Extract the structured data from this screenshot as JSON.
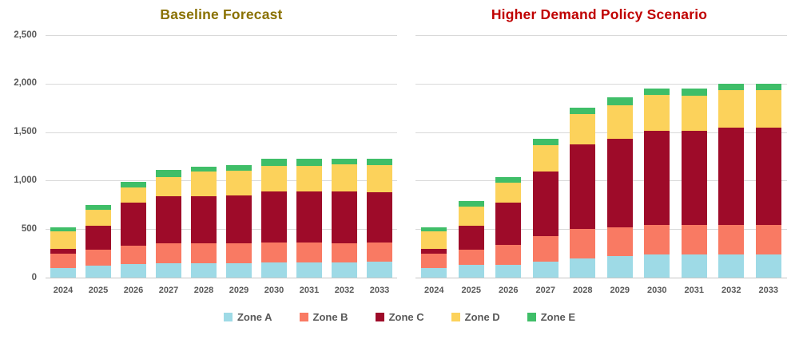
{
  "titles": {
    "left": "Baseline Forecast",
    "right": "Higher Demand Policy Scenario"
  },
  "colors": {
    "left_title": "#8A7100",
    "right_title": "#C00000",
    "axis_text": "#595959",
    "gridline": "#D9D9D9",
    "axis_line": "#C6C6C6",
    "zone_a": "#9EDAE6",
    "zone_b": "#F97A63",
    "zone_c": "#9E0B29",
    "zone_d": "#FCD25B",
    "zone_e": "#3FBE68"
  },
  "y_axis": {
    "min": 0,
    "max": 2500,
    "step": 500,
    "ticks": [
      "0",
      "500",
      "1,000",
      "1,500",
      "2,000",
      "2,500"
    ]
  },
  "categories": [
    "2024",
    "2025",
    "2026",
    "2027",
    "2028",
    "2029",
    "2030",
    "2031",
    "2032",
    "2033"
  ],
  "legend": [
    {
      "label": "Zone A",
      "color": "#9EDAE6"
    },
    {
      "label": "Zone B",
      "color": "#F97A63"
    },
    {
      "label": "Zone C",
      "color": "#9E0B29"
    },
    {
      "label": "Zone D",
      "color": "#FCD25B"
    },
    {
      "label": "Zone E",
      "color": "#3FBE68"
    }
  ],
  "chart_data": [
    {
      "type": "bar",
      "stacked": true,
      "title": "Baseline Forecast",
      "xlabel": "",
      "ylabel": "",
      "ylim": [
        0,
        2500
      ],
      "grid": true,
      "legend_position": "bottom",
      "categories": [
        "2024",
        "2025",
        "2026",
        "2027",
        "2028",
        "2029",
        "2030",
        "2031",
        "2032",
        "2033"
      ],
      "series": [
        {
          "name": "Zone A",
          "color": "#9EDAE6",
          "values": [
            100,
            120,
            140,
            150,
            150,
            150,
            160,
            160,
            160,
            165
          ]
        },
        {
          "name": "Zone B",
          "color": "#F97A63",
          "values": [
            150,
            170,
            190,
            205,
            205,
            205,
            200,
            200,
            195,
            195
          ]
        },
        {
          "name": "Zone C",
          "color": "#9E0B29",
          "values": [
            50,
            245,
            440,
            485,
            485,
            495,
            530,
            530,
            535,
            520
          ]
        },
        {
          "name": "Zone D",
          "color": "#FCD25B",
          "values": [
            175,
            165,
            160,
            200,
            250,
            250,
            265,
            265,
            280,
            280
          ]
        },
        {
          "name": "Zone E",
          "color": "#3FBE68",
          "values": [
            45,
            50,
            60,
            70,
            50,
            60,
            70,
            70,
            55,
            65
          ]
        }
      ],
      "totals": [
        520,
        750,
        990,
        1110,
        1140,
        1160,
        1225,
        1225,
        1225,
        1225
      ]
    },
    {
      "type": "bar",
      "stacked": true,
      "title": "Higher Demand Policy Scenario",
      "xlabel": "",
      "ylabel": "",
      "ylim": [
        0,
        2500
      ],
      "grid": true,
      "legend_position": "bottom",
      "categories": [
        "2024",
        "2025",
        "2026",
        "2027",
        "2028",
        "2029",
        "2030",
        "2031",
        "2032",
        "2033"
      ],
      "series": [
        {
          "name": "Zone A",
          "color": "#9EDAE6",
          "values": [
            100,
            130,
            135,
            165,
            200,
            225,
            240,
            240,
            235,
            240
          ]
        },
        {
          "name": "Zone B",
          "color": "#F97A63",
          "values": [
            150,
            160,
            200,
            260,
            300,
            295,
            300,
            300,
            305,
            305
          ]
        },
        {
          "name": "Zone C",
          "color": "#9E0B29",
          "values": [
            50,
            245,
            435,
            670,
            870,
            915,
            970,
            970,
            1010,
            1000
          ]
        },
        {
          "name": "Zone D",
          "color": "#FCD25B",
          "values": [
            175,
            195,
            205,
            270,
            320,
            345,
            375,
            365,
            380,
            385
          ]
        },
        {
          "name": "Zone E",
          "color": "#3FBE68",
          "values": [
            45,
            60,
            65,
            65,
            60,
            75,
            65,
            75,
            70,
            70
          ]
        }
      ],
      "totals": [
        520,
        790,
        1040,
        1430,
        1750,
        1855,
        1950,
        1950,
        2000,
        2000
      ]
    }
  ]
}
